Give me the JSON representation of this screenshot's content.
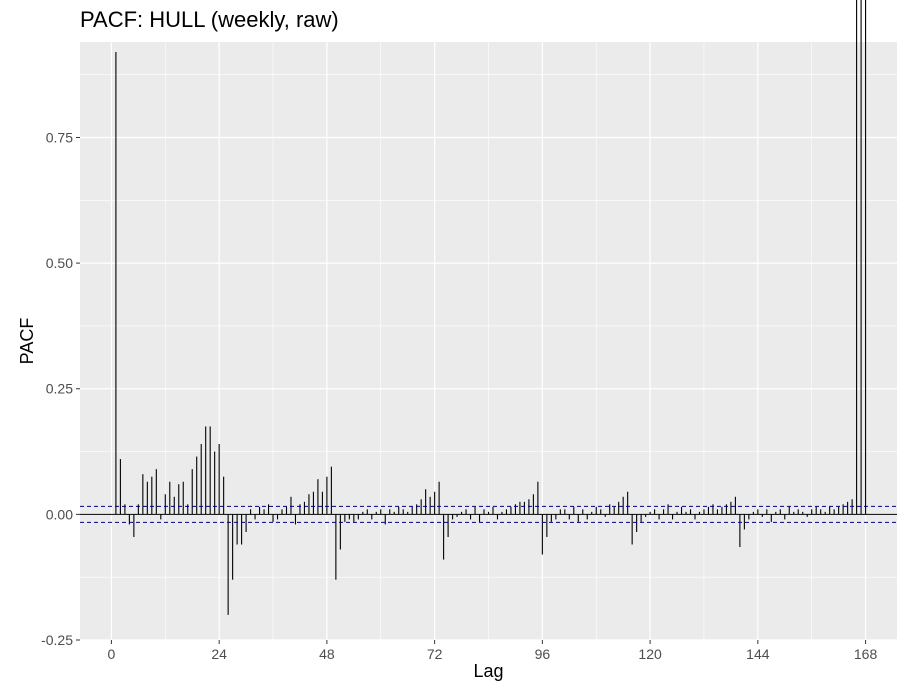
{
  "chart_data": {
    "type": "bar",
    "title": "PACF: HULL (weekly, raw)",
    "xlabel": "Lag",
    "ylabel": "PACF",
    "xlim": [
      -7,
      175
    ],
    "ylim": [
      -0.25,
      0.94
    ],
    "x_ticks": [
      0,
      24,
      48,
      72,
      96,
      120,
      144,
      168
    ],
    "y_ticks": [
      -0.25,
      0.0,
      0.25,
      0.5,
      0.75
    ],
    "y_tick_labels": [
      "-0.25",
      "0.00",
      "0.25",
      "0.50",
      "0.75"
    ],
    "confidence_bound": 0.016,
    "grid": true,
    "colors": {
      "panel": "#ebebeb",
      "grid": "#ffffff",
      "bar": "#000000",
      "ci": "#00008b"
    },
    "lags": [
      1,
      2,
      3,
      4,
      5,
      6,
      7,
      8,
      9,
      10,
      11,
      12,
      13,
      14,
      15,
      16,
      17,
      18,
      19,
      20,
      21,
      22,
      23,
      24,
      25,
      26,
      27,
      28,
      29,
      30,
      31,
      32,
      33,
      34,
      35,
      36,
      37,
      38,
      39,
      40,
      41,
      42,
      43,
      44,
      45,
      46,
      47,
      48,
      49,
      50,
      51,
      52,
      53,
      54,
      55,
      56,
      57,
      58,
      59,
      60,
      61,
      62,
      63,
      64,
      65,
      66,
      67,
      68,
      69,
      70,
      71,
      72,
      73,
      74,
      75,
      76,
      77,
      78,
      79,
      80,
      81,
      82,
      83,
      84,
      85,
      86,
      87,
      88,
      89,
      90,
      91,
      92,
      93,
      94,
      95,
      96,
      97,
      98,
      99,
      100,
      101,
      102,
      103,
      104,
      105,
      106,
      107,
      108,
      109,
      110,
      111,
      112,
      113,
      114,
      115,
      116,
      117,
      118,
      119,
      120,
      121,
      122,
      123,
      124,
      125,
      126,
      127,
      128,
      129,
      130,
      131,
      132,
      133,
      134,
      135,
      136,
      137,
      138,
      139,
      140,
      141,
      142,
      143,
      144,
      145,
      146,
      147,
      148,
      149,
      150,
      151,
      152,
      153,
      154,
      155,
      156,
      157,
      158,
      159,
      160,
      161,
      162,
      163,
      164,
      165,
      166,
      167,
      168
    ],
    "values": [
      0.92,
      0.11,
      0.02,
      -0.02,
      -0.045,
      0.02,
      0.08,
      0.065,
      0.075,
      0.09,
      -0.01,
      0.04,
      0.065,
      0.035,
      0.06,
      0.065,
      0.02,
      0.09,
      0.115,
      0.14,
      0.175,
      0.175,
      0.125,
      0.14,
      0.075,
      -0.2,
      -0.13,
      -0.06,
      -0.06,
      -0.035,
      0.01,
      -0.01,
      0.015,
      0.01,
      0.02,
      -0.015,
      -0.01,
      0.01,
      0.015,
      0.035,
      -0.02,
      0.02,
      0.025,
      0.04,
      0.045,
      0.07,
      0.045,
      0.075,
      0.095,
      -0.13,
      -0.07,
      -0.015,
      -0.01,
      -0.015,
      -0.01,
      0.005,
      0.01,
      -0.01,
      0.005,
      0.01,
      -0.02,
      0.01,
      0.005,
      0.015,
      0.01,
      0.005,
      0.015,
      0.02,
      0.03,
      0.05,
      0.035,
      0.045,
      0.065,
      -0.09,
      -0.045,
      -0.01,
      -0.005,
      0.005,
      0.01,
      -0.01,
      0.015,
      -0.015,
      0.01,
      0.005,
      0.015,
      -0.01,
      0.005,
      0.01,
      0.015,
      0.02,
      0.025,
      0.025,
      0.03,
      0.04,
      0.065,
      -0.08,
      -0.045,
      -0.015,
      -0.01,
      0.01,
      0.01,
      -0.01,
      0.015,
      -0.015,
      0.01,
      -0.01,
      0.005,
      0.015,
      0.01,
      -0.005,
      0.02,
      0.015,
      0.025,
      0.035,
      0.045,
      -0.06,
      -0.035,
      -0.015,
      -0.005,
      0.005,
      0.01,
      -0.01,
      0.01,
      0.02,
      -0.01,
      0.005,
      0.015,
      0.005,
      0.01,
      -0.01,
      0.005,
      0.01,
      0.015,
      0.02,
      0.01,
      0.015,
      0.02,
      0.025,
      0.035,
      -0.065,
      -0.03,
      -0.01,
      0.005,
      0.01,
      -0.005,
      0.01,
      -0.015,
      0.005,
      0.01,
      -0.01,
      0.015,
      0.005,
      0.01,
      0.005,
      -0.005,
      0.01,
      0.015,
      0.01,
      0.005,
      0.015,
      0.01,
      0.015,
      0.02,
      0.025,
      0.03
    ]
  }
}
